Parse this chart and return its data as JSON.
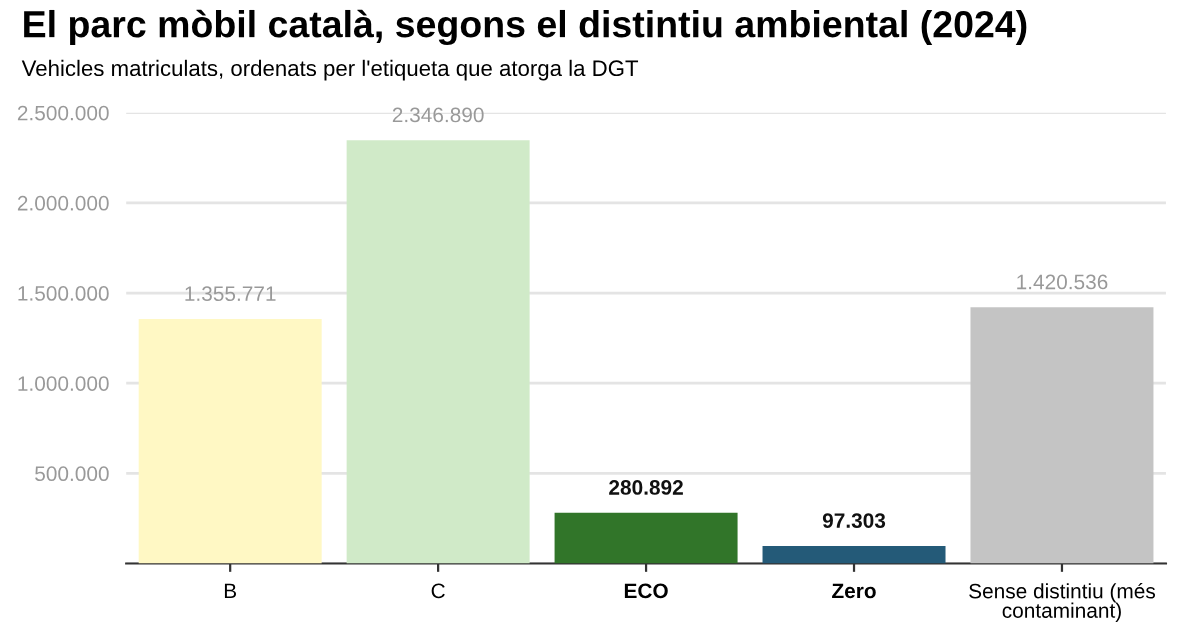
{
  "chart_data": {
    "type": "bar",
    "title": "El parc mòbil català, segons el distintiu ambiental (2024)",
    "subtitle": "Vehicles matriculats, ordenats per l'etiqueta que atorga la DGT",
    "categories": [
      "B",
      "C",
      "ECO",
      "Zero",
      "Sense distintiu (més\ncontaminant)"
    ],
    "values": [
      1355771,
      2346890,
      280892,
      97303,
      1420536
    ],
    "colors": [
      "#fff8c4",
      "#d0eac8",
      "#317529",
      "#245a78",
      "#c4c4c4"
    ],
    "value_labels": [
      "1.355.771",
      "2.346.890",
      "280.892",
      "97.303",
      "1.420.536"
    ],
    "ylim": [
      0,
      2500000
    ],
    "yticks": [
      {
        "value": 0,
        "label": null
      },
      {
        "value": 500000,
        "label": "500.000"
      },
      {
        "value": 1000000,
        "label": "1.000.000"
      },
      {
        "value": 1500000,
        "label": "1.500.000"
      },
      {
        "value": 2000000,
        "label": "2.000.000"
      },
      {
        "value": 2500000,
        "label": "2.500.000"
      }
    ],
    "grid": "y",
    "legend": false
  }
}
